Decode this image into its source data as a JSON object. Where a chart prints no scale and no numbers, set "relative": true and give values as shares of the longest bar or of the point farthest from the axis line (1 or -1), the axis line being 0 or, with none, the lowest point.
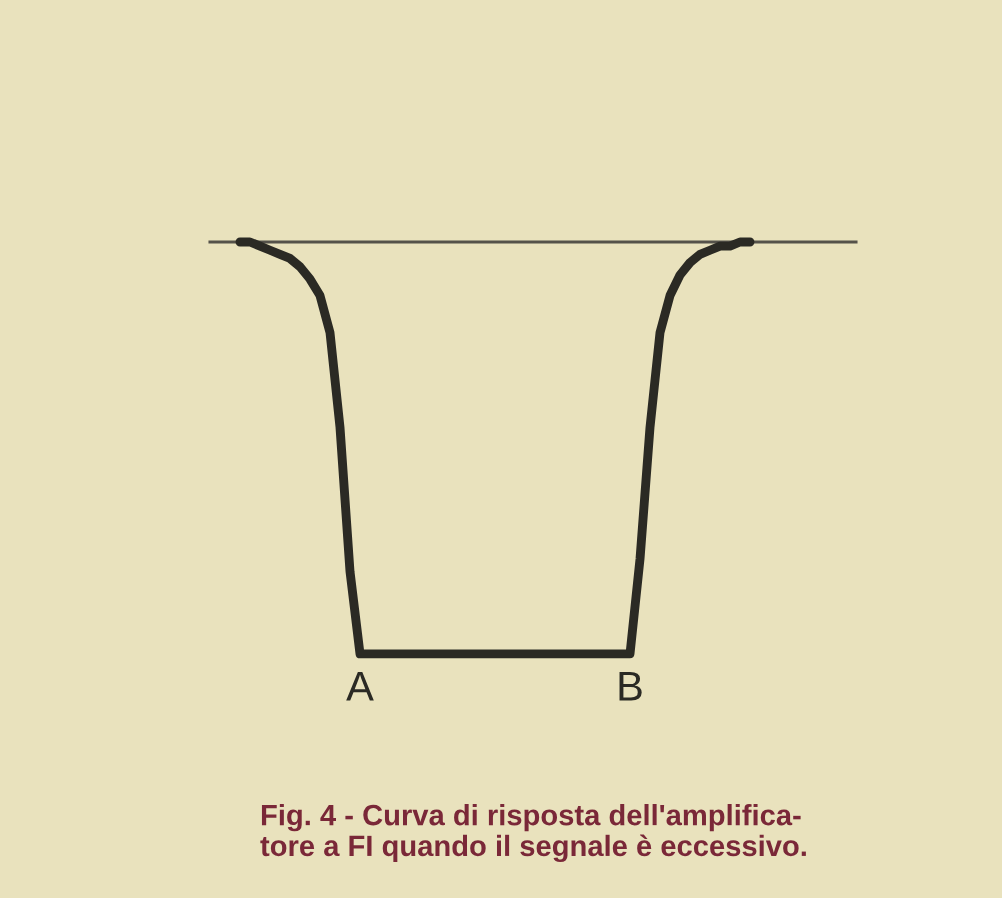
{
  "chart_data": {
    "type": "line",
    "relative": true,
    "color": "#2b2a24",
    "categories": [
      null,
      null,
      null,
      null,
      null,
      null,
      null,
      null,
      null,
      null,
      null,
      null,
      null,
      null,
      null,
      null,
      null,
      null,
      null,
      null,
      null,
      null,
      null,
      null,
      null,
      null,
      null,
      null,
      null,
      null,
      null,
      null,
      null,
      null,
      null,
      null,
      null,
      null,
      null,
      null,
      null,
      null,
      null,
      null,
      null,
      null,
      null,
      null,
      null,
      null,
      null,
      null
    ],
    "values": [
      0,
      0,
      -0.01,
      -0.02,
      -0.03,
      -0.04,
      -0.06,
      -0.09,
      -0.13,
      -0.22,
      -0.45,
      -0.8,
      -1,
      -1,
      -1,
      -1,
      -1,
      -1,
      -1,
      -1,
      -1,
      -1,
      -1,
      -1,
      -1,
      -1,
      -1,
      -1,
      -1,
      -1,
      -1,
      -1,
      -1,
      -1,
      -1,
      -1,
      -1,
      -1,
      -1,
      -1,
      -0.77,
      -0.45,
      -0.22,
      -0.13,
      -0.08,
      -0.05,
      -0.03,
      -0.02,
      -0.01,
      -0.01,
      0,
      0
    ],
    "annotations": [
      {
        "text": "A",
        "y": -1
      },
      {
        "text": "B",
        "y": -1
      },
      "Fig. 4 - Curva di risposta dell'amplifica-\ntore a FI quando il segnale è eccessivo."
    ]
  }
}
